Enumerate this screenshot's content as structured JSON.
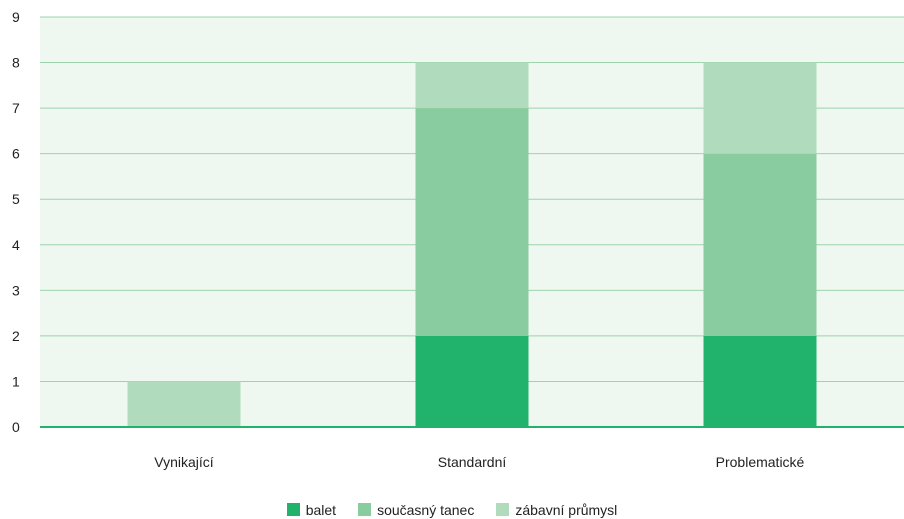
{
  "chart_data": {
    "type": "bar",
    "stacked": true,
    "categories": [
      "Vynikající",
      "Standardní",
      "Problematické"
    ],
    "series": [
      {
        "name": "balet",
        "values": [
          0,
          2,
          2
        ],
        "color": "#21b36b"
      },
      {
        "name": "současný tanec",
        "values": [
          0,
          5,
          4
        ],
        "color": "#88cc9f"
      },
      {
        "name": "zábavní průmysl",
        "values": [
          1,
          1,
          2
        ],
        "color": "#b0dcbd"
      }
    ],
    "y_ticks": [
      "0",
      "1",
      "2",
      "3",
      "4",
      "5",
      "6",
      "7",
      "8",
      "9"
    ],
    "ylim": [
      0,
      9
    ],
    "grid": true,
    "legend_position": "bottom",
    "colors": {
      "plot_background": "#eef7f0",
      "gridline": "#9ed3ad",
      "baseline": "#21b36b"
    }
  }
}
